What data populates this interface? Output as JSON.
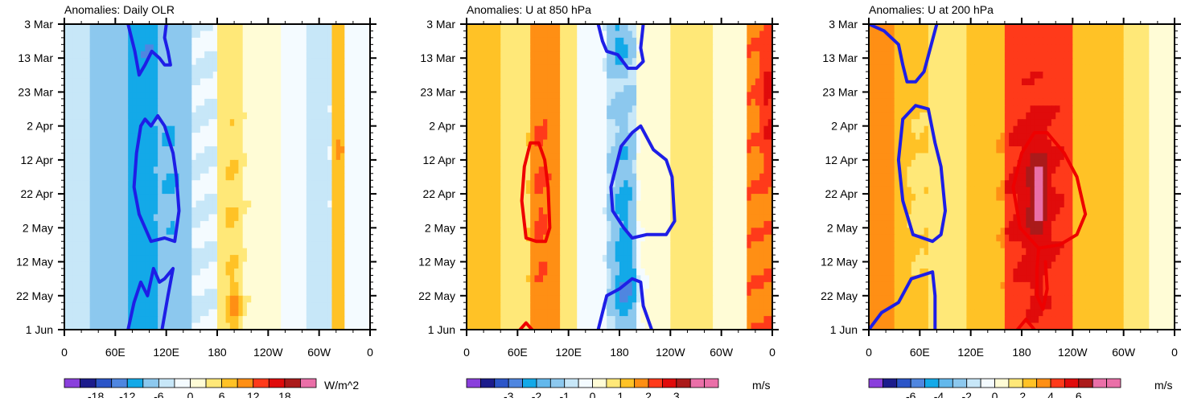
{
  "chart_data": [
    {
      "type": "heatmap",
      "title": "Anomalies: Daily OLR",
      "x_ticks": [
        "0",
        "60E",
        "120E",
        "180",
        "120W",
        "60W",
        "0"
      ],
      "y_ticks": [
        "3 Mar",
        "13 Mar",
        "23 Mar",
        "2 Apr",
        "12 Apr",
        "22 Apr",
        "2 May",
        "12 May",
        "22 May",
        "1 Jun"
      ],
      "xlim": [
        0,
        360
      ],
      "ylim": [
        "3 Mar",
        "1 Jun"
      ],
      "colorbar": {
        "unit": "W/m^2",
        "levels": [
          -21,
          -18,
          -15,
          -12,
          -9,
          -6,
          -3,
          0,
          3,
          6,
          9,
          12,
          15,
          18,
          21
        ],
        "labels": [
          "-18",
          "-12",
          "-6",
          "0",
          "6",
          "12",
          "18"
        ]
      },
      "bands": [
        {
          "lon_start": 0,
          "lon_end": 30,
          "value": -4
        },
        {
          "lon_start": 30,
          "lon_end": 75,
          "value": -7
        },
        {
          "lon_start": 75,
          "lon_end": 110,
          "value": -10
        },
        {
          "lon_start": 110,
          "lon_end": 150,
          "value": -7
        },
        {
          "lon_start": 150,
          "lon_end": 180,
          "value": -3
        },
        {
          "lon_start": 180,
          "lon_end": 210,
          "value": 4
        },
        {
          "lon_start": 210,
          "lon_end": 255,
          "value": 2
        },
        {
          "lon_start": 255,
          "lon_end": 285,
          "value": -2
        },
        {
          "lon_start": 285,
          "lon_end": 315,
          "value": -4
        },
        {
          "lon_start": 315,
          "lon_end": 330,
          "value": 7
        },
        {
          "lon_start": 330,
          "lon_end": 360,
          "value": -2
        }
      ],
      "blobs": [
        {
          "lon": 95,
          "day": 5,
          "rlon": 12,
          "rday": 8,
          "value": -12
        },
        {
          "lon": 125,
          "day": 44,
          "rlon": 12,
          "rday": 28,
          "value": -9
        },
        {
          "lon": 197,
          "day": 50,
          "rlon": 10,
          "rday": 30,
          "value": 6
        },
        {
          "lon": 200,
          "day": 83,
          "rlon": 8,
          "rday": 8,
          "value": 10
        },
        {
          "lon": 323,
          "day": 35,
          "rlon": 6,
          "rday": 14,
          "value": 9
        }
      ],
      "contours": [
        {
          "color": "#ee0000",
          "points": []
        },
        {
          "color": "#1e1ee6",
          "points": [
            [
              75,
              0
            ],
            [
              83,
              8
            ],
            [
              88,
              15
            ],
            [
              95,
              12
            ],
            [
              103,
              8
            ],
            [
              112,
              10
            ],
            [
              118,
              12
            ],
            [
              125,
              12
            ],
            [
              122,
              8
            ],
            [
              118,
              4
            ],
            [
              120,
              0
            ]
          ]
        },
        {
          "color": "#1e1ee6",
          "points": [
            [
              90,
              30
            ],
            [
              85,
              38
            ],
            [
              82,
              48
            ],
            [
              88,
              56
            ],
            [
              102,
              64
            ],
            [
              118,
              63
            ],
            [
              130,
              64
            ],
            [
              135,
              55
            ],
            [
              132,
              45
            ],
            [
              128,
              38
            ],
            [
              118,
              30
            ],
            [
              110,
              27
            ],
            [
              102,
              30
            ],
            [
              95,
              28
            ],
            [
              90,
              30
            ]
          ]
        },
        {
          "color": "#1e1ee6",
          "points": [
            [
              75,
              90
            ],
            [
              82,
              82
            ],
            [
              90,
              76
            ],
            [
              98,
              80
            ],
            [
              105,
              72
            ],
            [
              112,
              76
            ],
            [
              118,
              75
            ],
            [
              128,
              72
            ],
            [
              122,
              80
            ],
            [
              115,
              90
            ]
          ]
        }
      ]
    },
    {
      "type": "heatmap",
      "title": "Anomalies: U at 850 hPa",
      "x_ticks": [
        "0",
        "60E",
        "120E",
        "180",
        "120W",
        "60W",
        "0"
      ],
      "y_ticks": [
        "3 Mar",
        "13 Mar",
        "23 Mar",
        "2 Apr",
        "12 Apr",
        "22 Apr",
        "2 May",
        "12 May",
        "22 May",
        "1 Jun"
      ],
      "xlim": [
        0,
        360
      ],
      "ylim": [
        "3 Mar",
        "1 Jun"
      ],
      "colorbar": {
        "unit": "m/s",
        "levels": [
          -4,
          -3.5,
          -3,
          -2.5,
          -2,
          -1.5,
          -1,
          -0.5,
          0,
          0.5,
          1,
          1.5,
          2,
          2.5,
          3,
          3.5,
          4
        ],
        "labels": [
          "-3",
          "-2",
          "-1",
          "0",
          "1",
          "2",
          "3"
        ]
      },
      "bands": [
        {
          "lon_start": 0,
          "lon_end": 40,
          "value": 0.8
        },
        {
          "lon_start": 40,
          "lon_end": 75,
          "value": 0.3
        },
        {
          "lon_start": 75,
          "lon_end": 110,
          "value": 1.2
        },
        {
          "lon_start": 110,
          "lon_end": 130,
          "value": 0.3
        },
        {
          "lon_start": 130,
          "lon_end": 165,
          "value": -0.8
        },
        {
          "lon_start": 165,
          "lon_end": 200,
          "value": -1.4
        },
        {
          "lon_start": 200,
          "lon_end": 240,
          "value": -0.3
        },
        {
          "lon_start": 240,
          "lon_end": 290,
          "value": 0.3
        },
        {
          "lon_start": 290,
          "lon_end": 330,
          "value": -0.3
        },
        {
          "lon_start": 330,
          "lon_end": 360,
          "value": 1.4
        }
      ],
      "blobs": [
        {
          "lon": 88,
          "day": 50,
          "rlon": 10,
          "rday": 30,
          "value": 1.6
        },
        {
          "lon": 180,
          "day": 5,
          "rlon": 12,
          "rday": 10,
          "value": -2.2
        },
        {
          "lon": 185,
          "day": 55,
          "rlon": 12,
          "rday": 25,
          "value": -2.2
        },
        {
          "lon": 188,
          "day": 78,
          "rlon": 14,
          "rday": 10,
          "value": -2.6
        },
        {
          "lon": 355,
          "day": 20,
          "rlon": 8,
          "rday": 20,
          "value": 2.2
        }
      ],
      "contours": [
        {
          "color": "#ee0000",
          "points": [
            [
              75,
              35
            ],
            [
              68,
              42
            ],
            [
              65,
              52
            ],
            [
              70,
              63
            ],
            [
              82,
              64
            ],
            [
              93,
              64
            ],
            [
              98,
              60
            ],
            [
              96,
              48
            ],
            [
              92,
              40
            ],
            [
              85,
              35
            ],
            [
              75,
              35
            ]
          ]
        },
        {
          "color": "#ee0000",
          "points": [
            [
              63,
              90
            ],
            [
              70,
              88
            ],
            [
              77,
              90
            ]
          ]
        },
        {
          "color": "#1e1ee6",
          "points": [
            [
              155,
              0
            ],
            [
              160,
              5
            ],
            [
              165,
              8
            ],
            [
              178,
              9
            ],
            [
              190,
              13
            ],
            [
              200,
              13
            ],
            [
              208,
              11
            ],
            [
              205,
              7
            ],
            [
              208,
              0
            ]
          ]
        },
        {
          "color": "#1e1ee6",
          "points": [
            [
              175,
              43
            ],
            [
              170,
              48
            ],
            [
              172,
              55
            ],
            [
              185,
              60
            ],
            [
              195,
              63
            ],
            [
              212,
              62
            ],
            [
              235,
              62
            ],
            [
              245,
              58
            ],
            [
              242,
              45
            ],
            [
              235,
              40
            ],
            [
              220,
              37
            ],
            [
              205,
              30
            ],
            [
              195,
              32
            ],
            [
              182,
              36
            ],
            [
              175,
              43
            ]
          ]
        },
        {
          "color": "#1e1ee6",
          "points": [
            [
              155,
              90
            ],
            [
              165,
              80
            ],
            [
              180,
              78
            ],
            [
              195,
              75
            ],
            [
              205,
              76
            ],
            [
              208,
              83
            ],
            [
              218,
              90
            ]
          ]
        }
      ]
    },
    {
      "type": "heatmap",
      "title": "Anomalies: U at 200 hPa",
      "x_ticks": [
        "0",
        "60E",
        "120E",
        "180",
        "120W",
        "60W",
        "0"
      ],
      "y_ticks": [
        "3 Mar",
        "13 Mar",
        "23 Mar",
        "2 Apr",
        "12 Apr",
        "22 Apr",
        "2 May",
        "12 May",
        "22 May",
        "1 Jun"
      ],
      "xlim": [
        0,
        360
      ],
      "ylim": [
        "3 Mar",
        "1 Jun"
      ],
      "colorbar": {
        "unit": "m/s",
        "levels": [
          -8,
          -7,
          -6,
          -5,
          -4,
          -3,
          -2,
          -1,
          0,
          1,
          2,
          3,
          4,
          5,
          6,
          7,
          8
        ],
        "labels": [
          "-6",
          "-4",
          "-2",
          "0",
          "2",
          "4",
          "6"
        ]
      },
      "bands": [
        {
          "lon_start": 0,
          "lon_end": 30,
          "value": 2.5
        },
        {
          "lon_start": 30,
          "lon_end": 70,
          "value": 1.5
        },
        {
          "lon_start": 70,
          "lon_end": 115,
          "value": 0.4
        },
        {
          "lon_start": 115,
          "lon_end": 160,
          "value": 1.5
        },
        {
          "lon_start": 160,
          "lon_end": 240,
          "value": 3.5
        },
        {
          "lon_start": 240,
          "lon_end": 300,
          "value": 1.5
        },
        {
          "lon_start": 300,
          "lon_end": 330,
          "value": 0.4
        },
        {
          "lon_start": 330,
          "lon_end": 360,
          "value": -0.5
        }
      ],
      "blobs": [
        {
          "lon": 195,
          "day": 50,
          "rlon": 28,
          "rday": 28,
          "value": 4.5
        },
        {
          "lon": 198,
          "day": 50,
          "rlon": 14,
          "rday": 18,
          "value": 5.5
        },
        {
          "lon": 200,
          "day": 50,
          "rlon": 7,
          "rday": 10,
          "value": 6.5
        },
        {
          "lon": 198,
          "day": 75,
          "rlon": 8,
          "rday": 12,
          "value": 4.5
        },
        {
          "lon": 60,
          "day": 50,
          "rlon": 12,
          "rday": 20,
          "value": 0.3
        }
      ],
      "contours": [
        {
          "color": "#ee0000",
          "points": [
            [
              195,
              32
            ],
            [
              180,
              38
            ],
            [
              170,
              48
            ],
            [
              178,
              60
            ],
            [
              200,
              66
            ],
            [
              225,
              65
            ],
            [
              245,
              62
            ],
            [
              255,
              56
            ],
            [
              245,
              45
            ],
            [
              230,
              38
            ],
            [
              210,
              32
            ],
            [
              195,
              32
            ]
          ]
        },
        {
          "color": "#ee0000",
          "points": [
            [
              200,
              66
            ],
            [
              198,
              72
            ],
            [
              198,
              80
            ],
            [
              205,
              84
            ],
            [
              210,
              78
            ],
            [
              208,
              70
            ]
          ]
        },
        {
          "color": "#ee0000",
          "points": [
            [
              175,
              90
            ],
            [
              185,
              87
            ],
            [
              195,
              90
            ]
          ]
        },
        {
          "color": "#1e1ee6",
          "points": [
            [
              0,
              0
            ],
            [
              18,
              2
            ],
            [
              35,
              6
            ],
            [
              40,
              12
            ],
            [
              45,
              17
            ],
            [
              55,
              17
            ],
            [
              65,
              14
            ],
            [
              80,
              0
            ]
          ]
        },
        {
          "color": "#1e1ee6",
          "points": [
            [
              40,
              28
            ],
            [
              35,
              40
            ],
            [
              40,
              52
            ],
            [
              52,
              62
            ],
            [
              75,
              64
            ],
            [
              85,
              62
            ],
            [
              90,
              55
            ],
            [
              85,
              42
            ],
            [
              78,
              35
            ],
            [
              70,
              25
            ],
            [
              55,
              24
            ],
            [
              40,
              28
            ]
          ]
        },
        {
          "color": "#1e1ee6",
          "points": [
            [
              0,
              90
            ],
            [
              15,
              85
            ],
            [
              35,
              82
            ],
            [
              50,
              75
            ],
            [
              75,
              73
            ],
            [
              78,
              80
            ],
            [
              78,
              90
            ]
          ]
        }
      ]
    }
  ]
}
